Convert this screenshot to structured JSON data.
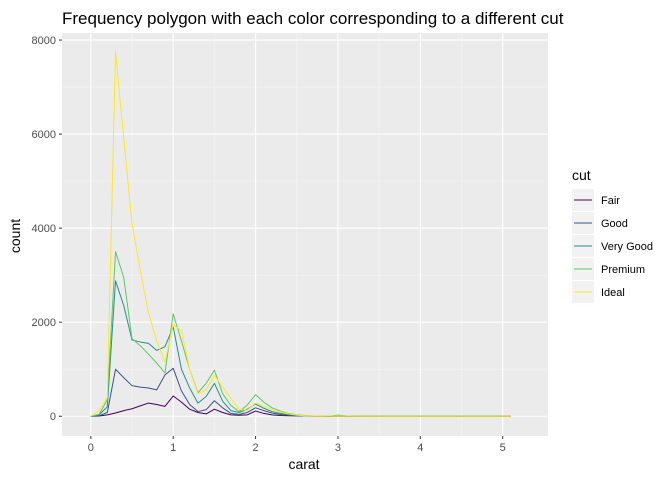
{
  "chart_data": {
    "type": "line",
    "title": "Frequency polygon with each color corresponding to a different cut",
    "xlabel": "carat",
    "ylabel": "count",
    "xlim": [
      -0.35,
      5.55
    ],
    "ylim": [
      -420,
      8150
    ],
    "x_ticks": [
      0,
      1,
      2,
      3,
      4,
      5
    ],
    "y_ticks": [
      0,
      2000,
      4000,
      6000,
      8000
    ],
    "grid": true,
    "legend": {
      "title": "cut",
      "position": "right"
    },
    "series": [
      {
        "name": "Fair",
        "color": "#440154",
        "points": [
          [
            0.0,
            0
          ],
          [
            0.1,
            5
          ],
          [
            0.2,
            30
          ],
          [
            0.3,
            70
          ],
          [
            0.4,
            120
          ],
          [
            0.5,
            160
          ],
          [
            0.6,
            220
          ],
          [
            0.7,
            280
          ],
          [
            0.8,
            250
          ],
          [
            0.9,
            210
          ],
          [
            1.0,
            430
          ],
          [
            1.1,
            300
          ],
          [
            1.2,
            150
          ],
          [
            1.3,
            80
          ],
          [
            1.4,
            50
          ],
          [
            1.5,
            150
          ],
          [
            1.6,
            80
          ],
          [
            1.7,
            30
          ],
          [
            1.8,
            20
          ],
          [
            1.9,
            30
          ],
          [
            2.0,
            110
          ],
          [
            2.1,
            60
          ],
          [
            2.2,
            30
          ],
          [
            2.3,
            15
          ],
          [
            2.4,
            10
          ],
          [
            2.5,
            8
          ],
          [
            2.6,
            5
          ],
          [
            2.7,
            3
          ],
          [
            2.8,
            2
          ],
          [
            2.9,
            1
          ],
          [
            3.0,
            5
          ],
          [
            3.1,
            2
          ],
          [
            3.2,
            1
          ],
          [
            3.3,
            0
          ],
          [
            3.5,
            0
          ],
          [
            4.0,
            0
          ],
          [
            4.5,
            0
          ],
          [
            5.0,
            0
          ],
          [
            5.1,
            0
          ]
        ]
      },
      {
        "name": "Good",
        "color": "#3B528B",
        "points": [
          [
            0.0,
            0
          ],
          [
            0.1,
            10
          ],
          [
            0.2,
            80
          ],
          [
            0.3,
            1000
          ],
          [
            0.4,
            820
          ],
          [
            0.5,
            650
          ],
          [
            0.6,
            620
          ],
          [
            0.7,
            600
          ],
          [
            0.8,
            560
          ],
          [
            0.9,
            880
          ],
          [
            1.0,
            1020
          ],
          [
            1.1,
            540
          ],
          [
            1.2,
            250
          ],
          [
            1.3,
            100
          ],
          [
            1.4,
            140
          ],
          [
            1.5,
            330
          ],
          [
            1.6,
            180
          ],
          [
            1.7,
            60
          ],
          [
            1.8,
            40
          ],
          [
            1.9,
            80
          ],
          [
            2.0,
            180
          ],
          [
            2.1,
            120
          ],
          [
            2.2,
            70
          ],
          [
            2.3,
            40
          ],
          [
            2.4,
            20
          ],
          [
            2.5,
            10
          ],
          [
            2.6,
            5
          ],
          [
            2.7,
            3
          ],
          [
            2.8,
            2
          ],
          [
            2.9,
            1
          ],
          [
            3.0,
            0
          ],
          [
            3.5,
            0
          ],
          [
            4.0,
            0
          ],
          [
            4.5,
            0
          ],
          [
            5.0,
            0
          ]
        ]
      },
      {
        "name": "Very Good",
        "color": "#21908C",
        "points": [
          [
            0.0,
            0
          ],
          [
            0.1,
            30
          ],
          [
            0.2,
            200
          ],
          [
            0.3,
            2880
          ],
          [
            0.4,
            2350
          ],
          [
            0.5,
            1620
          ],
          [
            0.6,
            1580
          ],
          [
            0.7,
            1550
          ],
          [
            0.8,
            1400
          ],
          [
            0.9,
            1480
          ],
          [
            1.0,
            1900
          ],
          [
            1.1,
            1000
          ],
          [
            1.2,
            600
          ],
          [
            1.3,
            280
          ],
          [
            1.4,
            420
          ],
          [
            1.5,
            700
          ],
          [
            1.6,
            320
          ],
          [
            1.7,
            120
          ],
          [
            1.8,
            80
          ],
          [
            1.9,
            150
          ],
          [
            2.0,
            260
          ],
          [
            2.1,
            170
          ],
          [
            2.2,
            100
          ],
          [
            2.3,
            60
          ],
          [
            2.4,
            30
          ],
          [
            2.5,
            15
          ],
          [
            2.6,
            8
          ],
          [
            2.7,
            5
          ],
          [
            2.8,
            3
          ],
          [
            2.9,
            2
          ],
          [
            3.0,
            10
          ],
          [
            3.1,
            3
          ],
          [
            3.2,
            1
          ],
          [
            3.5,
            0
          ],
          [
            4.0,
            0
          ],
          [
            4.5,
            0
          ],
          [
            5.0,
            0
          ]
        ]
      },
      {
        "name": "Premium",
        "color": "#5DC863",
        "points": [
          [
            0.0,
            0
          ],
          [
            0.1,
            40
          ],
          [
            0.2,
            350
          ],
          [
            0.3,
            3500
          ],
          [
            0.4,
            2950
          ],
          [
            0.5,
            1650
          ],
          [
            0.6,
            1500
          ],
          [
            0.7,
            1320
          ],
          [
            0.8,
            1130
          ],
          [
            0.9,
            920
          ],
          [
            1.0,
            2180
          ],
          [
            1.1,
            1600
          ],
          [
            1.2,
            1000
          ],
          [
            1.3,
            500
          ],
          [
            1.4,
            700
          ],
          [
            1.5,
            980
          ],
          [
            1.6,
            480
          ],
          [
            1.7,
            230
          ],
          [
            1.8,
            100
          ],
          [
            1.9,
            240
          ],
          [
            2.0,
            460
          ],
          [
            2.1,
            300
          ],
          [
            2.2,
            180
          ],
          [
            2.3,
            110
          ],
          [
            2.4,
            60
          ],
          [
            2.5,
            30
          ],
          [
            2.6,
            15
          ],
          [
            2.7,
            8
          ],
          [
            2.8,
            5
          ],
          [
            2.9,
            3
          ],
          [
            3.0,
            25
          ],
          [
            3.1,
            8
          ],
          [
            3.2,
            2
          ],
          [
            3.5,
            0
          ],
          [
            4.0,
            0
          ],
          [
            4.5,
            0
          ],
          [
            5.0,
            0
          ]
        ]
      },
      {
        "name": "Ideal",
        "color": "#FDE725",
        "points": [
          [
            0.0,
            0
          ],
          [
            0.1,
            120
          ],
          [
            0.2,
            400
          ],
          [
            0.3,
            7750
          ],
          [
            0.4,
            5900
          ],
          [
            0.5,
            4100
          ],
          [
            0.6,
            3100
          ],
          [
            0.7,
            2200
          ],
          [
            0.8,
            1600
          ],
          [
            0.9,
            1150
          ],
          [
            1.0,
            1950
          ],
          [
            1.1,
            1820
          ],
          [
            1.2,
            1000
          ],
          [
            1.3,
            480
          ],
          [
            1.4,
            560
          ],
          [
            1.5,
            870
          ],
          [
            1.6,
            620
          ],
          [
            1.7,
            380
          ],
          [
            1.8,
            150
          ],
          [
            1.9,
            130
          ],
          [
            2.0,
            280
          ],
          [
            2.1,
            210
          ],
          [
            2.2,
            140
          ],
          [
            2.3,
            90
          ],
          [
            2.4,
            50
          ],
          [
            2.5,
            25
          ],
          [
            2.6,
            12
          ],
          [
            2.7,
            6
          ],
          [
            2.8,
            3
          ],
          [
            2.9,
            2
          ],
          [
            3.0,
            5
          ],
          [
            3.1,
            2
          ],
          [
            3.2,
            1
          ],
          [
            3.5,
            0
          ],
          [
            4.0,
            0
          ],
          [
            4.5,
            0
          ],
          [
            5.0,
            0
          ],
          [
            5.1,
            0
          ]
        ]
      }
    ]
  }
}
